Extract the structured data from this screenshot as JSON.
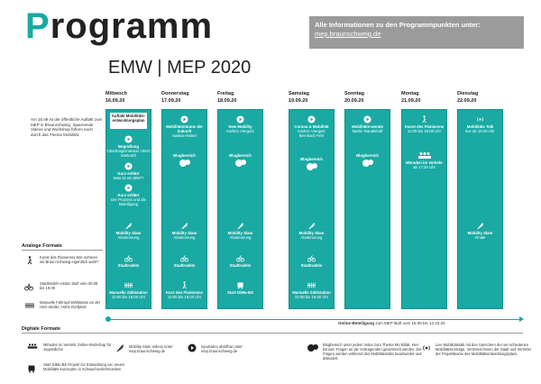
{
  "title": {
    "first": "P",
    "rest": "rogramm"
  },
  "subtitle": "EMW | MEP 2020",
  "info_box": {
    "text": "Alle Informationen zu den Programmpunkten unter:",
    "url": "mep.braunschweig.de"
  },
  "left_note": "Am 16.09 ist der öffentliche Auftakt zum MEP in Braunschweig. Spannende Videos und Workshop führen euch durch das Thema Mobilität.",
  "days": [
    {
      "name": "Mittwoch",
      "date": "16.09.20"
    },
    {
      "name": "Donnerstag",
      "date": "17.09.20"
    },
    {
      "name": "Freitag",
      "date": "18.09.20"
    },
    {
      "name": "Samstag",
      "date": "19.09.20"
    },
    {
      "name": "Sonntag",
      "date": "20.09.20"
    },
    {
      "name": "Montag",
      "date": "21.09.20"
    },
    {
      "name": "Dienstag",
      "date": "22.09.20"
    }
  ],
  "col_mittwoch": {
    "auftakt": "Auftakt Mobilitäts-entwicklungsplan",
    "begruessung_t": "Begrüßung",
    "begruessung_s": "Oberbürgermeister Ulrich Markurth",
    "kurz1_t": "Kurz erklärt",
    "kurz1_s": "Was ist ein MEP?",
    "kurz2_t": "Kurz erklärt",
    "kurz2_s": "Der Prozess und die Beteiligung",
    "slam_t": "Mobility Slam",
    "slam_s": "Abstimmung",
    "rad": "Stadtradeln",
    "zaehl_t": "Manuelle Zählstation",
    "zaehl_s": "10:00 bis 18:00 Uhr"
  },
  "col_donnerstag": {
    "a_t": "Mobilitätsräume der Zukunft",
    "a_s": "Saskia Hebert",
    "blog": "Blogbereich",
    "slam_t": "Mobility Slam",
    "slam_s": "Abstimmung",
    "rad": "Stadtradeln",
    "kurs_t": "Kurs des Flanierens",
    "kurs_s": "10:00 bis 18:00 Uhr"
  },
  "col_freitag": {
    "a_t": "New Mobility",
    "a_s": "Kathrin Viergutz",
    "blog": "Blogbereich",
    "slam_t": "Mobility Slam",
    "slam_s": "Abstimmung",
    "rad": "Stadtradeln",
    "start_t": "Start DiMo-BS"
  },
  "col_samstag": {
    "a_t": "Corona & Mobilität",
    "a_s": "Kathrin Viergutz Bernhard Fehr",
    "blog": "Blogbereich",
    "slam_t": "Mobility Slam",
    "slam_s": "Abstimmung",
    "rad": "Stadtradeln",
    "zaehl_t": "Manuelle Zählstation",
    "zaehl_s": "10:00 bis 18:00 Uhr"
  },
  "col_sonntag": {
    "a_t": "Mobilitäts-wende",
    "a_s": "Martin Randelhoff",
    "blog": "Blogbereich"
  },
  "col_montag": {
    "kurs_t": "Kunst des Flanierens",
    "kurs_s": "11:00 bis 18:00 Uhr",
    "verkehr_t": "Mitreden im Verkehr",
    "verkehr_s": "ab 17:30 Uhr"
  },
  "col_dienstag": {
    "talk_t": "Mobilitäts Talk",
    "talk_s": "live ab 18:00 Uhr",
    "slam_t": "Mobility Slam",
    "slam_s": "Finale"
  },
  "analog": {
    "label": "Analoge Formate",
    "items": [
      "Kunst des Flanierens Wie nehmen wir Braun-schweig eigentlich wahr?",
      "Stadtradeln-Aktion läuft vom 30.08 bis 19.09",
      "Manuelle Fahrrad-zählstation an der Hinz-straße, Höhe Dorfplatz"
    ]
  },
  "online": {
    "bold": "Online-Beteiligung",
    "rest": "zum MEP läuft vom 16.09 bis 12.10.20"
  },
  "digital": {
    "label": "Digitale Formate",
    "items": [
      "Mitreden im Verkehr Online-Workshop für Jugendliche",
      "Start DiMo-BS Projekt zur Entwicklung von neuen Mobilitäts-konzepten in Schwachverkehrszeiten",
      "Mobility Slam Videos unter: mep.braunschweig.de",
      "Inputvideo abrufbar unter: mep.braunschweig.de",
      "Blogbereich unter jedem Video zum Thema Mo-bilität. Hier können Fragen an die Vortragenden gesammelt werden. Die Fragen werden während des Mobilitätstalks beantwortet und diskutiert.",
      "Live Mobilitätstalk mit den Sprechern der ver-schiedenen Mobilitätsvorträge, Vertretern/innen der Stadt und Vertreter der Projektteams des Mobilitätsentwicklungsplans."
    ]
  },
  "colors": {
    "teal": "#1aa9a3",
    "grey_box": "#9b9b9b"
  }
}
